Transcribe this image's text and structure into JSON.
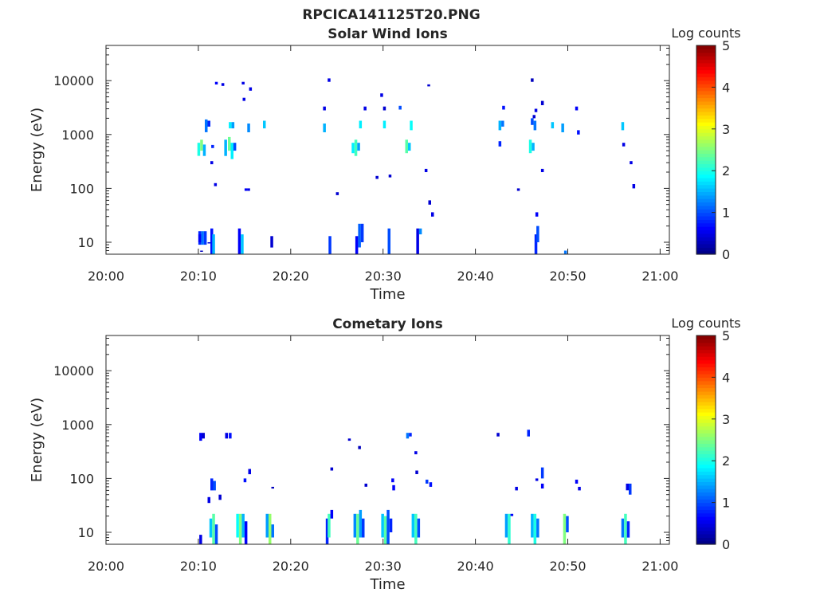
{
  "figure_title": "RPCICA141125T20.PNG",
  "chart_data": [
    {
      "type": "heatmap",
      "title": "Solar Wind Ions",
      "xlabel": "Time",
      "ylabel": "Energy (eV)",
      "xlim": [
        "20:00",
        "21:01"
      ],
      "ylim": [
        6,
        45000
      ],
      "yscale": "log",
      "x_ticks": [
        "20:00",
        "20:10",
        "20:20",
        "20:30",
        "20:40",
        "20:50",
        "21:00"
      ],
      "y_ticks": [
        "10",
        "100",
        "1000",
        "10000"
      ],
      "colorbar": {
        "label": "Log counts",
        "range": [
          0,
          5
        ],
        "ticks": [
          "0",
          "1",
          "2",
          "3",
          "4",
          "5"
        ],
        "colormap": "jet"
      },
      "cells": [
        [
          10.0,
          9,
          16,
          0.8
        ],
        [
          10.0,
          10,
          14,
          0.6
        ],
        [
          10.3,
          9,
          16,
          1.2
        ],
        [
          10.6,
          9,
          16,
          0.9
        ],
        [
          10.2,
          11,
          7,
          0.3
        ],
        [
          11.0,
          10,
          10,
          0.4
        ],
        [
          11.3,
          6,
          18,
          0.7
        ],
        [
          11.5,
          6,
          14,
          1.5
        ],
        [
          14.3,
          6,
          18,
          0.6
        ],
        [
          14.6,
          6,
          14,
          1.6
        ],
        [
          17.8,
          8,
          13,
          0.4
        ],
        [
          24.1,
          6,
          13,
          0.9
        ],
        [
          27.0,
          6,
          13,
          0.6
        ],
        [
          27.3,
          8,
          22,
          1.1
        ],
        [
          27.6,
          10,
          22,
          0.9
        ],
        [
          30.5,
          6,
          18,
          1.0
        ],
        [
          33.6,
          6,
          18,
          0.5
        ],
        [
          33.9,
          14,
          18,
          1.3
        ],
        [
          46.4,
          6,
          14,
          0.8
        ],
        [
          46.6,
          10,
          20,
          1.0
        ],
        [
          49.6,
          6,
          7,
          1.2
        ],
        [
          9.9,
          400,
          700,
          2.0
        ],
        [
          10.2,
          500,
          800,
          2.5
        ],
        [
          10.5,
          400,
          650,
          1.5
        ],
        [
          10.7,
          1100,
          1900,
          1.2
        ],
        [
          11.0,
          1400,
          1800,
          0.8
        ],
        [
          12.8,
          400,
          800,
          1.5
        ],
        [
          13.2,
          500,
          900,
          2.4
        ],
        [
          13.5,
          350,
          700,
          1.8
        ],
        [
          13.8,
          500,
          700,
          1.0
        ],
        [
          13.3,
          1300,
          1700,
          1.8
        ],
        [
          13.6,
          1300,
          1700,
          1.4
        ],
        [
          11.3,
          280,
          320,
          0.5
        ],
        [
          11.4,
          560,
          640,
          0.8
        ],
        [
          15.3,
          1100,
          1600,
          1.3
        ],
        [
          17.0,
          1300,
          1800,
          1.6
        ],
        [
          23.5,
          1100,
          1600,
          1.5
        ],
        [
          26.6,
          450,
          700,
          1.8
        ],
        [
          26.9,
          400,
          800,
          2.2
        ],
        [
          27.2,
          500,
          700,
          1.4
        ],
        [
          27.4,
          1300,
          1800,
          1.8
        ],
        [
          30.0,
          1300,
          1800,
          1.8
        ],
        [
          32.4,
          450,
          800,
          2.3
        ],
        [
          32.7,
          500,
          700,
          1.6
        ],
        [
          32.9,
          1200,
          1800,
          1.9
        ],
        [
          42.5,
          1200,
          1800,
          1.5
        ],
        [
          42.8,
          1400,
          1800,
          1.2
        ],
        [
          42.5,
          600,
          750,
          0.8
        ],
        [
          45.8,
          450,
          800,
          2.0
        ],
        [
          46.1,
          500,
          700,
          1.5
        ],
        [
          46.3,
          1200,
          1800,
          1.2
        ],
        [
          46.0,
          1500,
          2000,
          1.0
        ],
        [
          48.2,
          1300,
          1700,
          1.6
        ],
        [
          49.3,
          1100,
          1600,
          1.4
        ],
        [
          55.8,
          1200,
          1700,
          1.6
        ],
        [
          51.0,
          1000,
          1200,
          0.7
        ],
        [
          11.8,
          8500,
          9500,
          0.6
        ],
        [
          12.5,
          8000,
          9000,
          0.5
        ],
        [
          14.7,
          8500,
          9500,
          0.5
        ],
        [
          14.8,
          4200,
          4800,
          0.5
        ],
        [
          15.5,
          6500,
          7500,
          0.5
        ],
        [
          24.0,
          9500,
          11000,
          0.5
        ],
        [
          29.7,
          5000,
          5800,
          0.5
        ],
        [
          34.8,
          7800,
          8500,
          0.4
        ],
        [
          46.0,
          9500,
          11000,
          0.3
        ],
        [
          47.1,
          3500,
          4200,
          0.4
        ],
        [
          23.5,
          2800,
          3300,
          0.5
        ],
        [
          27.9,
          2800,
          3300,
          0.5
        ],
        [
          30.0,
          2800,
          3300,
          0.4
        ],
        [
          31.7,
          2900,
          3400,
          1.0
        ],
        [
          42.9,
          2900,
          3400,
          0.7
        ],
        [
          46.2,
          2000,
          2300,
          0.4
        ],
        [
          46.4,
          2600,
          3000,
          0.5
        ],
        [
          50.8,
          2800,
          3300,
          0.6
        ],
        [
          15.0,
          90,
          100,
          0.6
        ],
        [
          15.3,
          90,
          100,
          0.5
        ],
        [
          11.7,
          110,
          125,
          0.5
        ],
        [
          24.9,
          75,
          85,
          0.4
        ],
        [
          29.2,
          150,
          170,
          0.4
        ],
        [
          30.6,
          160,
          180,
          0.4
        ],
        [
          34.5,
          200,
          230,
          0.5
        ],
        [
          34.9,
          50,
          60,
          0.4
        ],
        [
          35.2,
          30,
          36,
          0.5
        ],
        [
          44.5,
          90,
          100,
          0.4
        ],
        [
          46.5,
          30,
          36,
          0.6
        ],
        [
          47.1,
          200,
          230,
          0.5
        ],
        [
          55.9,
          600,
          700,
          0.5
        ],
        [
          56.7,
          280,
          320,
          0.5
        ],
        [
          57.0,
          100,
          120,
          0.5
        ]
      ]
    },
    {
      "type": "heatmap",
      "title": "Cometary Ions",
      "xlabel": "Time",
      "ylabel": "Energy (eV)",
      "xlim": [
        "20:00",
        "21:01"
      ],
      "ylim": [
        6,
        45000
      ],
      "yscale": "log",
      "x_ticks": [
        "20:00",
        "20:10",
        "20:20",
        "20:30",
        "20:40",
        "20:50",
        "21:00"
      ],
      "y_ticks": [
        "10",
        "100",
        "1000",
        "10000"
      ],
      "colorbar": {
        "label": "Log counts",
        "range": [
          0,
          5
        ],
        "ticks": [
          "0",
          "1",
          "2",
          "3",
          "4",
          "5"
        ],
        "colormap": "jet"
      },
      "cells": [
        [
          10.1,
          500,
          700,
          0.6
        ],
        [
          10.4,
          550,
          700,
          0.4
        ],
        [
          12.9,
          550,
          700,
          0.5
        ],
        [
          13.3,
          550,
          700,
          0.7
        ],
        [
          11.3,
          60,
          100,
          0.8
        ],
        [
          11.6,
          60,
          90,
          1.0
        ],
        [
          11.0,
          35,
          45,
          0.5
        ],
        [
          12.2,
          40,
          50,
          0.4
        ],
        [
          14.9,
          85,
          100,
          0.7
        ],
        [
          15.4,
          120,
          150,
          0.5
        ],
        [
          17.9,
          65,
          70,
          0.3
        ],
        [
          26.2,
          500,
          550,
          0.4
        ],
        [
          27.3,
          350,
          400,
          0.3
        ],
        [
          28.0,
          70,
          80,
          0.4
        ],
        [
          32.5,
          550,
          700,
          1.2
        ],
        [
          32.8,
          600,
          700,
          0.8
        ],
        [
          33.4,
          280,
          320,
          0.5
        ],
        [
          33.5,
          120,
          140,
          0.4
        ],
        [
          30.9,
          85,
          100,
          0.6
        ],
        [
          31.0,
          60,
          75,
          0.6
        ],
        [
          34.6,
          80,
          95,
          0.9
        ],
        [
          35.0,
          70,
          85,
          0.7
        ],
        [
          42.3,
          600,
          700,
          0.4
        ],
        [
          45.6,
          600,
          800,
          0.8
        ],
        [
          44.3,
          60,
          70,
          0.5
        ],
        [
          47.1,
          100,
          160,
          0.9
        ],
        [
          47.1,
          65,
          80,
          0.6
        ],
        [
          46.5,
          90,
          100,
          0.5
        ],
        [
          50.8,
          80,
          95,
          0.6
        ],
        [
          51.1,
          60,
          70,
          0.5
        ],
        [
          56.3,
          60,
          80,
          0.5
        ],
        [
          56.6,
          50,
          80,
          0.9
        ],
        [
          24.3,
          140,
          160,
          0.4
        ],
        [
          10.1,
          6,
          9,
          0.5
        ],
        [
          11.2,
          8,
          18,
          1.6
        ],
        [
          11.5,
          6,
          22,
          2.3
        ],
        [
          11.8,
          6,
          14,
          1.0
        ],
        [
          14.1,
          8,
          22,
          1.9
        ],
        [
          14.4,
          6,
          22,
          2.5
        ],
        [
          14.7,
          8,
          22,
          1.5
        ],
        [
          15.0,
          6,
          16,
          0.6
        ],
        [
          17.3,
          8,
          22,
          1.4
        ],
        [
          17.6,
          6,
          22,
          2.6
        ],
        [
          17.9,
          8,
          14,
          1.2
        ],
        [
          23.8,
          6,
          18,
          0.8
        ],
        [
          24.0,
          8,
          22,
          2.2
        ],
        [
          24.3,
          18,
          26,
          0.6
        ],
        [
          26.8,
          8,
          22,
          1.3
        ],
        [
          27.1,
          6,
          22,
          2.4
        ],
        [
          27.4,
          8,
          26,
          1.4
        ],
        [
          27.7,
          8,
          18,
          0.9
        ],
        [
          29.8,
          8,
          22,
          1.6
        ],
        [
          30.1,
          6,
          20,
          2.3
        ],
        [
          30.4,
          6,
          26,
          1.0
        ],
        [
          30.7,
          10,
          18,
          0.8
        ],
        [
          33.1,
          8,
          22,
          1.6
        ],
        [
          33.4,
          6,
          22,
          2.2
        ],
        [
          33.7,
          8,
          18,
          1.0
        ],
        [
          43.2,
          8,
          22,
          1.4
        ],
        [
          43.5,
          6,
          22,
          2.1
        ],
        [
          43.8,
          20,
          22,
          0.6
        ],
        [
          46.0,
          8,
          22,
          1.5
        ],
        [
          46.3,
          6,
          22,
          2.0
        ],
        [
          46.6,
          8,
          18,
          1.2
        ],
        [
          49.5,
          6,
          22,
          2.5
        ],
        [
          49.8,
          10,
          20,
          1.0
        ],
        [
          55.8,
          8,
          18,
          1.2
        ],
        [
          56.1,
          6,
          22,
          2.2
        ],
        [
          56.4,
          8,
          16,
          0.8
        ]
      ]
    }
  ]
}
